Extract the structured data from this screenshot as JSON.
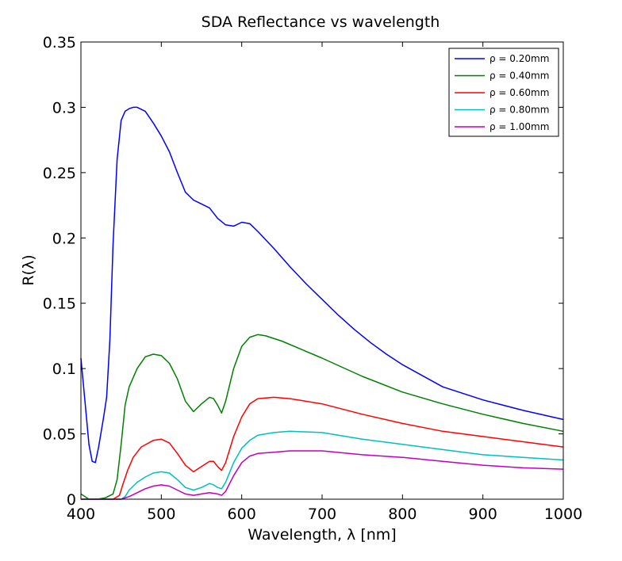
{
  "chart_data": {
    "type": "line",
    "title": "SDA Reflectance vs wavelength",
    "xlabel": "Wavelength, λ [nm]",
    "ylabel": "R(λ)",
    "xlim": [
      400,
      1000
    ],
    "ylim": [
      0,
      0.35
    ],
    "xticks": [
      400,
      500,
      600,
      700,
      800,
      900,
      1000
    ],
    "yticks": [
      0,
      0.05,
      0.1,
      0.15,
      0.2,
      0.25,
      0.3,
      0.35
    ],
    "xtick_labels": [
      "400",
      "500",
      "600",
      "700",
      "800",
      "900",
      "1000"
    ],
    "ytick_labels": [
      "0",
      "0.05",
      "0.1",
      "0.15",
      "0.2",
      "0.25",
      "0.3",
      "0.35"
    ],
    "grid": false,
    "legend_position": "top-right",
    "series": [
      {
        "name": "ρ = 0.20mm",
        "color": "#0000ff",
        "x": [
          400,
          405,
          410,
          414,
          418,
          422,
          428,
          432,
          436,
          440,
          445,
          450,
          455,
          460,
          465,
          470,
          480,
          490,
          500,
          510,
          520,
          530,
          540,
          550,
          560,
          570,
          580,
          590,
          600,
          610,
          620,
          640,
          660,
          680,
          700,
          720,
          740,
          760,
          780,
          800,
          850,
          900,
          950,
          1000
        ],
        "y": [
          0.108,
          0.075,
          0.042,
          0.029,
          0.028,
          0.04,
          0.062,
          0.078,
          0.122,
          0.195,
          0.26,
          0.29,
          0.297,
          0.299,
          0.3,
          0.3,
          0.297,
          0.288,
          0.278,
          0.266,
          0.25,
          0.235,
          0.229,
          0.226,
          0.223,
          0.215,
          0.21,
          0.209,
          0.212,
          0.211,
          0.205,
          0.192,
          0.178,
          0.165,
          0.153,
          0.141,
          0.13,
          0.12,
          0.111,
          0.103,
          0.086,
          0.076,
          0.068,
          0.061
        ]
      },
      {
        "name": "ρ = 0.40mm",
        "color": "#008000",
        "x": [
          400,
          410,
          420,
          430,
          440,
          445,
          450,
          455,
          460,
          470,
          480,
          490,
          500,
          510,
          520,
          530,
          540,
          550,
          560,
          565,
          570,
          575,
          580,
          590,
          600,
          610,
          620,
          630,
          650,
          700,
          750,
          800,
          850,
          900,
          950,
          1000
        ],
        "y": [
          0.004,
          0.0,
          0.0,
          0.001,
          0.004,
          0.015,
          0.042,
          0.072,
          0.086,
          0.1,
          0.109,
          0.111,
          0.11,
          0.104,
          0.092,
          0.075,
          0.067,
          0.073,
          0.078,
          0.077,
          0.072,
          0.066,
          0.075,
          0.1,
          0.117,
          0.124,
          0.126,
          0.125,
          0.121,
          0.108,
          0.094,
          0.082,
          0.073,
          0.065,
          0.058,
          0.052
        ]
      },
      {
        "name": "ρ = 0.60mm",
        "color": "#ff0000",
        "x": [
          400,
          420,
          440,
          448,
          452,
          458,
          465,
          475,
          490,
          500,
          510,
          520,
          530,
          540,
          550,
          560,
          565,
          570,
          575,
          580,
          590,
          600,
          610,
          620,
          640,
          660,
          700,
          750,
          800,
          850,
          900,
          950,
          1000
        ],
        "y": [
          0.0,
          0.0,
          0.0,
          0.003,
          0.011,
          0.022,
          0.032,
          0.04,
          0.045,
          0.046,
          0.043,
          0.035,
          0.026,
          0.021,
          0.025,
          0.029,
          0.029,
          0.025,
          0.022,
          0.028,
          0.048,
          0.063,
          0.073,
          0.077,
          0.078,
          0.077,
          0.073,
          0.065,
          0.058,
          0.052,
          0.048,
          0.044,
          0.04
        ]
      },
      {
        "name": "ρ = 0.80mm",
        "color": "#00bfbf",
        "x": [
          400,
          440,
          450,
          455,
          460,
          470,
          480,
          490,
          500,
          510,
          520,
          530,
          540,
          550,
          560,
          565,
          570,
          575,
          580,
          590,
          600,
          610,
          620,
          640,
          660,
          700,
          750,
          800,
          850,
          900,
          950,
          1000
        ],
        "y": [
          0.0,
          0.0,
          0.0,
          0.002,
          0.007,
          0.013,
          0.017,
          0.02,
          0.021,
          0.02,
          0.015,
          0.009,
          0.007,
          0.009,
          0.012,
          0.011,
          0.009,
          0.008,
          0.013,
          0.028,
          0.039,
          0.045,
          0.049,
          0.051,
          0.052,
          0.051,
          0.046,
          0.042,
          0.038,
          0.034,
          0.032,
          0.03
        ]
      },
      {
        "name": "ρ = 1.00mm",
        "color": "#bf00bf",
        "x": [
          400,
          450,
          460,
          470,
          480,
          490,
          500,
          510,
          520,
          530,
          540,
          550,
          560,
          570,
          575,
          580,
          590,
          600,
          610,
          620,
          640,
          660,
          700,
          750,
          800,
          850,
          900,
          950,
          1000
        ],
        "y": [
          0.0,
          0.0,
          0.002,
          0.005,
          0.008,
          0.01,
          0.011,
          0.01,
          0.007,
          0.004,
          0.003,
          0.004,
          0.005,
          0.004,
          0.003,
          0.006,
          0.018,
          0.028,
          0.033,
          0.035,
          0.036,
          0.037,
          0.037,
          0.034,
          0.032,
          0.029,
          0.026,
          0.024,
          0.023
        ]
      }
    ]
  }
}
